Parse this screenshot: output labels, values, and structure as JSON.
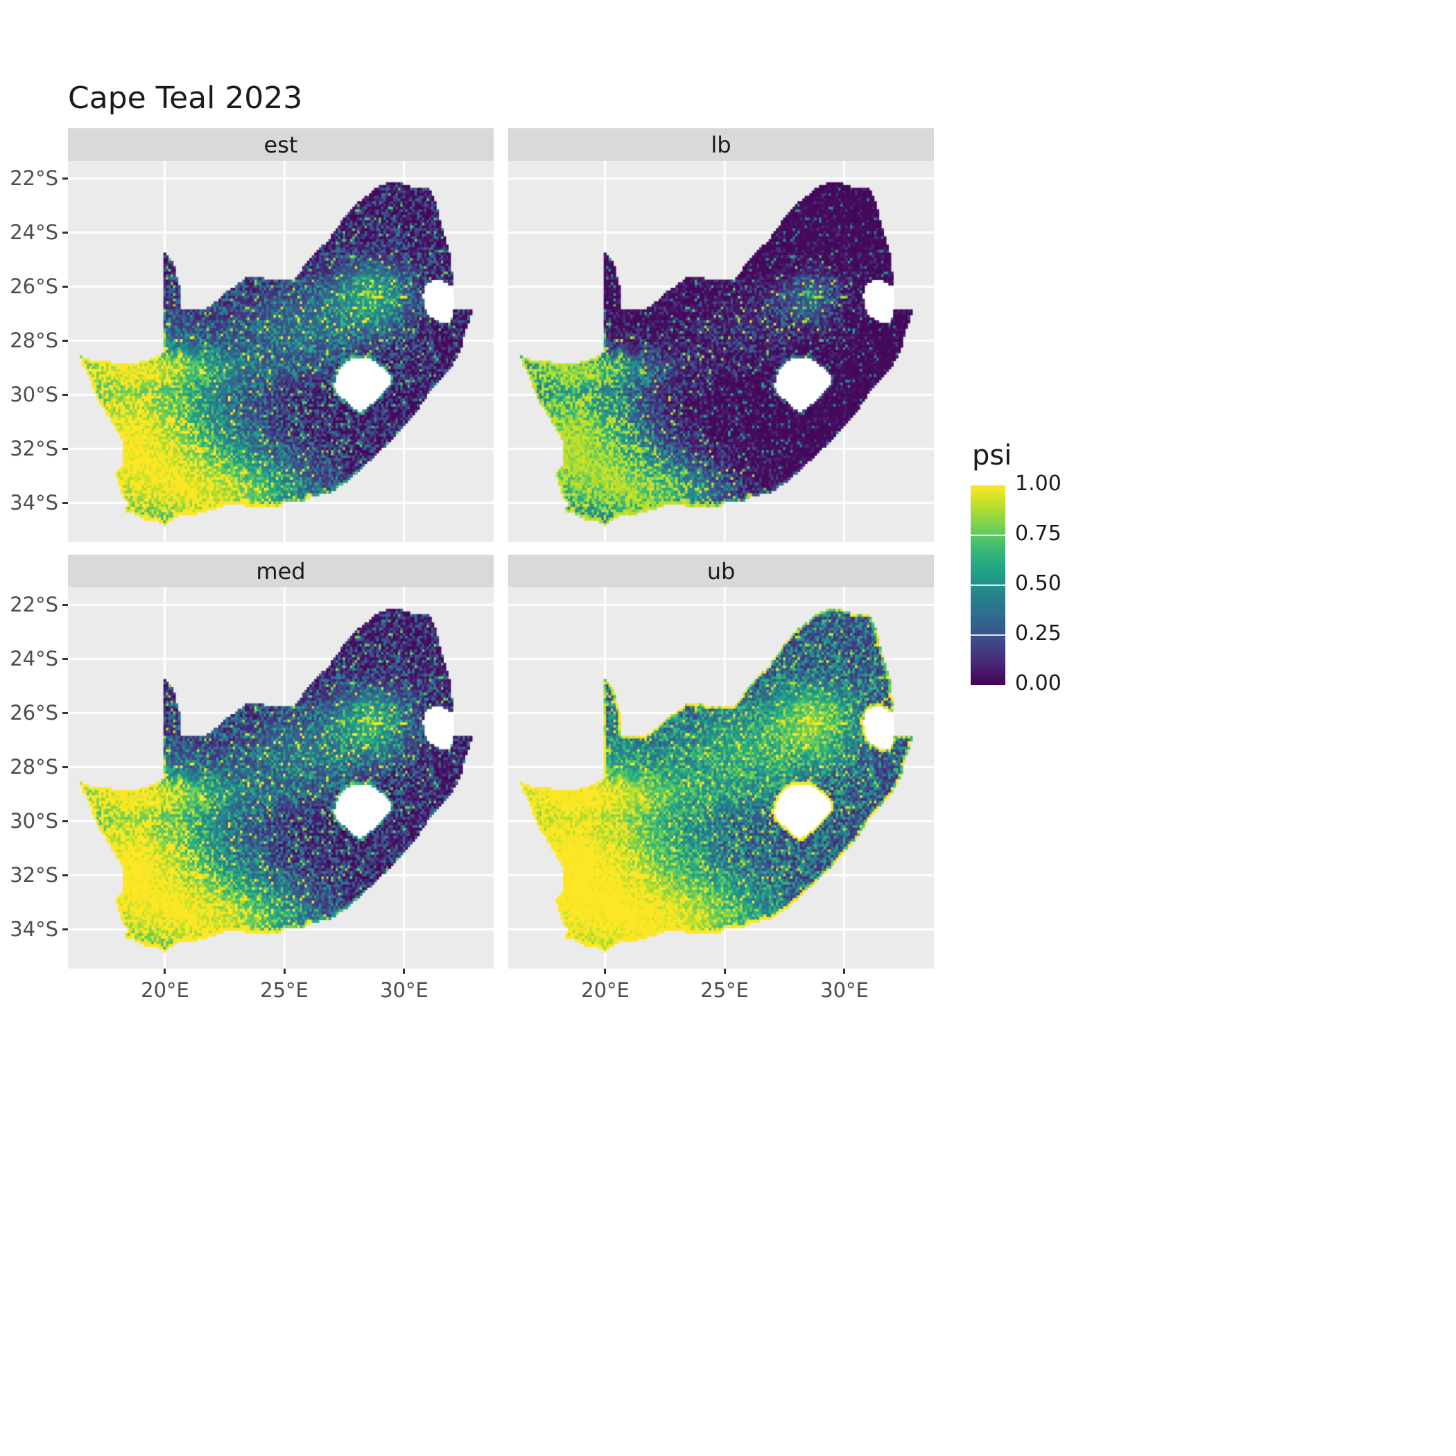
{
  "title": "Cape Teal 2023",
  "chart_data": {
    "type": "heatmap",
    "subtype": "faceted-raster-occupancy-map",
    "title": "Cape Teal 2023",
    "region": "South Africa",
    "facets": [
      {
        "label": "est"
      },
      {
        "label": "lb"
      },
      {
        "label": "med"
      },
      {
        "label": "ub"
      }
    ],
    "x_axis": {
      "ticks": [
        "20°E",
        "25°E",
        "30°E"
      ],
      "values": [
        20,
        25,
        30
      ],
      "range_lon": [
        15.95,
        33.75
      ]
    },
    "y_axis": {
      "ticks": [
        "22°S",
        "24°S",
        "26°S",
        "28°S",
        "30°S",
        "32°S",
        "34°S"
      ],
      "values": [
        -22,
        -24,
        -26,
        -28,
        -30,
        -32,
        -34
      ],
      "range_lat": [
        -35.45,
        -21.35
      ]
    },
    "legend": {
      "title": "psi",
      "ticks": [
        {
          "label": "1.00",
          "value": 1.0
        },
        {
          "label": "0.75",
          "value": 0.75
        },
        {
          "label": "0.50",
          "value": 0.5
        },
        {
          "label": "0.25",
          "value": 0.25
        },
        {
          "label": "0.00",
          "value": 0.0
        }
      ],
      "range": [
        0,
        1
      ],
      "palette": [
        "#440154",
        "#482878",
        "#3E4A89",
        "#31688E",
        "#26828E",
        "#1F9E89",
        "#35B779",
        "#6DCD59",
        "#B4DE2C",
        "#FDE725"
      ]
    },
    "pattern_summary": {
      "high_psi_regions": "southwest and western coastal South Africa, southern coast, highveld hotspot near 28.5E 26.3S",
      "low_psi_regions": "northeast interior, Limpopo, lowveld and KwaZulu-Natal coast",
      "facet_ordering": "lb < med ~ est < ub"
    }
  },
  "colors": {
    "background": "#FFFFFF",
    "panel_bg": "#EBEBEB",
    "strip_bg": "#D9D9D9",
    "grid": "#FFFFFF",
    "axis_text": "#4D4D4D",
    "title_text": "#1A1A1A"
  },
  "geometry": {
    "south_africa_outline": [
      [
        16.45,
        -28.58
      ],
      [
        17.1,
        -28.76
      ],
      [
        17.75,
        -28.79
      ],
      [
        18.2,
        -28.9
      ],
      [
        18.75,
        -28.84
      ],
      [
        19.3,
        -28.72
      ],
      [
        19.98,
        -28.45
      ],
      [
        19.98,
        -24.77
      ],
      [
        20.35,
        -25.15
      ],
      [
        20.55,
        -25.75
      ],
      [
        20.69,
        -26.35
      ],
      [
        20.62,
        -26.83
      ],
      [
        21.1,
        -26.87
      ],
      [
        21.68,
        -26.86
      ],
      [
        22.15,
        -26.55
      ],
      [
        22.62,
        -26.18
      ],
      [
        23.0,
        -25.98
      ],
      [
        23.45,
        -25.62
      ],
      [
        24.0,
        -25.67
      ],
      [
        24.65,
        -25.8
      ],
      [
        25.35,
        -25.76
      ],
      [
        25.62,
        -25.58
      ],
      [
        25.9,
        -25.12
      ],
      [
        26.28,
        -24.72
      ],
      [
        26.85,
        -24.3
      ],
      [
        27.15,
        -23.9
      ],
      [
        27.55,
        -23.4
      ],
      [
        28.0,
        -22.95
      ],
      [
        28.55,
        -22.58
      ],
      [
        29.05,
        -22.22
      ],
      [
        29.68,
        -22.14
      ],
      [
        30.3,
        -22.3
      ],
      [
        31.1,
        -22.4
      ],
      [
        31.35,
        -22.98
      ],
      [
        31.55,
        -23.68
      ],
      [
        31.76,
        -24.32
      ],
      [
        31.95,
        -24.95
      ],
      [
        32.02,
        -25.62
      ],
      [
        32.06,
        -25.96
      ],
      [
        31.4,
        -25.73
      ],
      [
        30.96,
        -25.86
      ],
      [
        30.78,
        -26.26
      ],
      [
        30.83,
        -26.76
      ],
      [
        31.06,
        -27.1
      ],
      [
        31.45,
        -27.3
      ],
      [
        31.96,
        -27.32
      ],
      [
        32.11,
        -26.86
      ],
      [
        32.89,
        -26.86
      ],
      [
        32.58,
        -27.62
      ],
      [
        32.38,
        -28.32
      ],
      [
        32.08,
        -28.82
      ],
      [
        31.68,
        -29.28
      ],
      [
        31.05,
        -29.9
      ],
      [
        30.6,
        -30.52
      ],
      [
        30.18,
        -31.02
      ],
      [
        29.5,
        -31.66
      ],
      [
        28.88,
        -32.16
      ],
      [
        28.2,
        -32.76
      ],
      [
        27.58,
        -33.22
      ],
      [
        26.9,
        -33.62
      ],
      [
        26.18,
        -33.76
      ],
      [
        25.65,
        -34.0
      ],
      [
        25.0,
        -33.99
      ],
      [
        24.8,
        -34.2
      ],
      [
        24.0,
        -34.12
      ],
      [
        23.35,
        -34.1
      ],
      [
        22.55,
        -34.05
      ],
      [
        22.1,
        -34.22
      ],
      [
        21.3,
        -34.42
      ],
      [
        20.52,
        -34.5
      ],
      [
        20.0,
        -34.82
      ],
      [
        19.58,
        -34.62
      ],
      [
        19.28,
        -34.66
      ],
      [
        18.8,
        -34.42
      ],
      [
        18.35,
        -34.32
      ],
      [
        18.46,
        -34.02
      ],
      [
        18.3,
        -33.86
      ],
      [
        18.08,
        -33.3
      ],
      [
        17.96,
        -32.95
      ],
      [
        18.26,
        -32.56
      ],
      [
        18.3,
        -32.0
      ],
      [
        18.2,
        -31.6
      ],
      [
        17.8,
        -31.0
      ],
      [
        17.35,
        -30.4
      ],
      [
        17.04,
        -29.88
      ],
      [
        16.84,
        -29.28
      ],
      [
        16.6,
        -28.9
      ]
    ],
    "lesotho_hole": [
      [
        27.05,
        -29.62
      ],
      [
        27.33,
        -28.98
      ],
      [
        27.78,
        -28.66
      ],
      [
        28.4,
        -28.6
      ],
      [
        28.95,
        -28.86
      ],
      [
        29.4,
        -29.26
      ],
      [
        29.46,
        -29.56
      ],
      [
        29.14,
        -29.96
      ],
      [
        28.7,
        -30.32
      ],
      [
        28.14,
        -30.66
      ],
      [
        27.84,
        -30.46
      ],
      [
        27.5,
        -30.2
      ],
      [
        27.2,
        -29.96
      ]
    ],
    "eswatini_area": [
      [
        32.06,
        -25.96
      ],
      [
        31.4,
        -25.73
      ],
      [
        30.96,
        -25.86
      ],
      [
        30.78,
        -26.26
      ],
      [
        30.83,
        -26.76
      ],
      [
        31.06,
        -27.1
      ],
      [
        31.45,
        -27.3
      ],
      [
        31.96,
        -27.32
      ],
      [
        32.11,
        -26.86
      ]
    ]
  }
}
